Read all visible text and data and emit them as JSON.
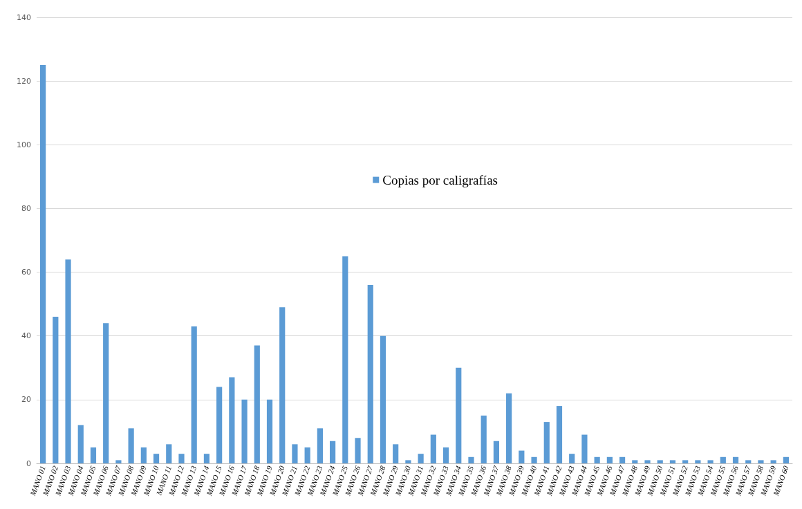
{
  "chart_data": {
    "type": "bar",
    "categories": [
      "MANO 01",
      "MANO 02",
      "MANO 03",
      "MANO 04",
      "MANO 05",
      "MANO 06",
      "MANO 07",
      "MANO 08",
      "MANO 09",
      "MANO 10",
      "MANO 11",
      "MANO 12",
      "MANO 13",
      "MANO 14",
      "MANO 15",
      "MANO 16",
      "MANO 17",
      "MANO 18",
      "MANO 19",
      "MANO 20",
      "MANO 21",
      "MANO 22",
      "MANO 23",
      "MANO 24",
      "MANO 25",
      "MANO 26",
      "MANO 27",
      "MANO 28",
      "MANO 29",
      "MANO 30",
      "MANO 31",
      "MANO 32",
      "MANO 33",
      "MANO 34",
      "MANO 35",
      "MANO 36",
      "MANO 37",
      "MANO 38",
      "MANO 39",
      "MANO 40",
      "MANO 41",
      "MANO 42",
      "MANO 43",
      "MANO 44",
      "MANO 45",
      "MANO 46",
      "MANO 47",
      "MANO 48",
      "MANO 49",
      "MANO 50",
      "MANO 51",
      "MANO 52",
      "MANO 53",
      "MANO 54",
      "MANO 55",
      "MANO 56",
      "MANO 57",
      "MANO 58",
      "MANO 59",
      "MANO 60"
    ],
    "series": [
      {
        "name": "Copias por caligrafías",
        "color": "#5b9bd5",
        "values": [
          125,
          46,
          64,
          12,
          5,
          44,
          1,
          11,
          5,
          3,
          6,
          3,
          43,
          3,
          24,
          27,
          20,
          37,
          20,
          49,
          6,
          5,
          11,
          7,
          65,
          8,
          56,
          40,
          6,
          1,
          3,
          9,
          5,
          30,
          2,
          15,
          7,
          22,
          4,
          2,
          13,
          18,
          3,
          9,
          2,
          2,
          2,
          1,
          1,
          1,
          1,
          1,
          1,
          1,
          2,
          2,
          1,
          1,
          1,
          2
        ]
      }
    ],
    "ylim": [
      0,
      140
    ],
    "yticks": [
      0,
      20,
      40,
      60,
      80,
      100,
      120,
      140
    ],
    "grid": "y",
    "legend": "center"
  }
}
